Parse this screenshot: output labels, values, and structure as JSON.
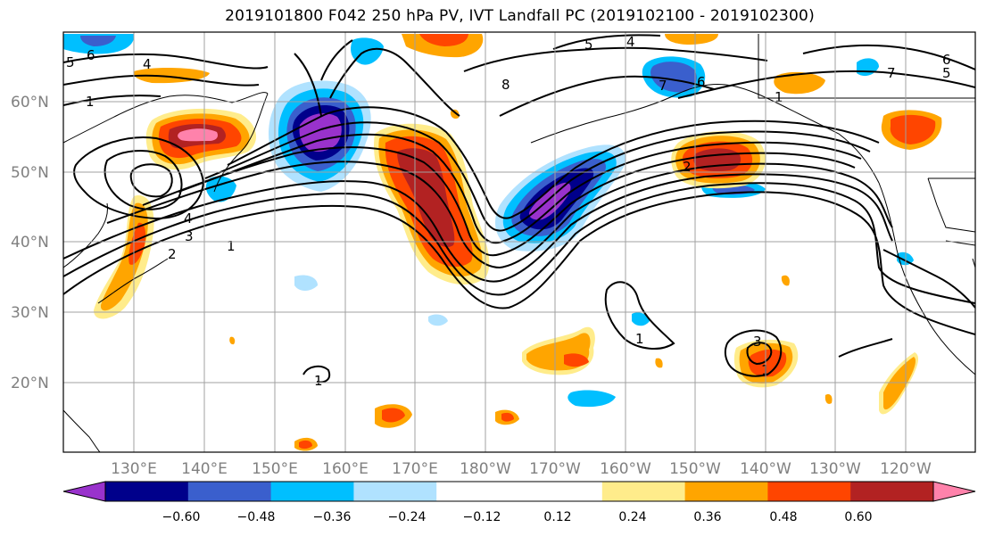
{
  "title": "2019101800 F042 250 hPa PV, IVT Landfall PC (2019102100 - 2019102300)",
  "map": {
    "lon_ticks": [
      "130°E",
      "140°E",
      "150°E",
      "160°E",
      "170°E",
      "180°W",
      "170°W",
      "160°W",
      "150°W",
      "140°W",
      "130°W",
      "120°W"
    ],
    "lat_ticks": [
      "60°N",
      "50°N",
      "40°N",
      "30°N",
      "20°N"
    ],
    "contour_labels": [
      "1",
      "2",
      "3",
      "4",
      "5",
      "6",
      "7",
      "8",
      "1",
      "4",
      "5",
      "6",
      "7",
      "1",
      "2",
      "3",
      "4",
      "5",
      "6",
      "1",
      "1",
      "1"
    ],
    "colors": {
      "grid": "#a0a0a0",
      "coast": "#000000",
      "label": "#808080"
    }
  },
  "colorbar": {
    "colors": [
      "#9932cc",
      "#00008b",
      "#3a5fcd",
      "#00bfff",
      "#b0e2ff",
      "#ffffff",
      "#ffffff",
      "#ffec8b",
      "#ffa500",
      "#ff4500",
      "#b22222",
      "#ff82ab"
    ],
    "labels": [
      "−0.60",
      "−0.48",
      "−0.36",
      "−0.24",
      "−0.12",
      "0.12",
      "0.24",
      "0.36",
      "0.48",
      "0.60"
    ]
  }
}
